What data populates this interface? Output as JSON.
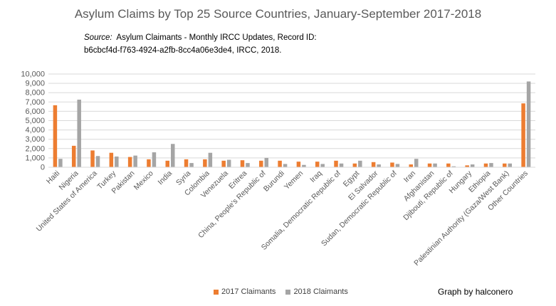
{
  "header": {
    "title": "Asylum Claims by Top 25 Source Countries, January-September 2017-2018",
    "source_label": "Source:",
    "source_text_1": "Asylum Claimants - Monthly IRCC Updates, Record ID:",
    "source_text_2": "b6cbcf4d-f763-4924-a2fb-8cc4a06e3de4, IRCC, 2018."
  },
  "footer": {
    "credit": "Graph by halconero"
  },
  "colors": {
    "series_2017": "#ed7d31",
    "series_2018": "#a5a5a5",
    "grid": "#d9d9d9",
    "text": "#595959"
  },
  "chart_data": {
    "type": "bar",
    "title": "Asylum Claims by Top 25 Source Countries, January-September 2017-2018",
    "xlabel": "",
    "ylabel": "",
    "ylim": [
      0,
      10000
    ],
    "yticks": [
      "0",
      "1,000",
      "2,000",
      "3,000",
      "4,000",
      "5,000",
      "6,000",
      "7,000",
      "8,000",
      "9,000",
      "10,000"
    ],
    "grid": true,
    "legend_position": "bottom",
    "categories": [
      "Haiti",
      "Nigeria",
      "United States of America",
      "Turkey",
      "Pakistan",
      "Mexico",
      "India",
      "Syria",
      "Colombia",
      "Venezuela",
      "Eritrea",
      "China, People's Republic of",
      "Burundi",
      "Yemen",
      "Iraq",
      "Somalia, Democratic Republic of",
      "Egypt",
      "El Salvador",
      "Sudan, Democratic Republic of",
      "Iran",
      "Afghanistan",
      "Djibouti, Republic of",
      "Hungary",
      "Ethiopia",
      "Palestinian Authority (Gaza/West Bank)",
      "Other Countries"
    ],
    "series": [
      {
        "name": "2017 Claimants",
        "color": "#ed7d31",
        "values": [
          6650,
          2300,
          1800,
          1550,
          1100,
          850,
          700,
          850,
          850,
          700,
          750,
          700,
          700,
          600,
          600,
          700,
          400,
          550,
          500,
          300,
          400,
          400,
          200,
          400,
          400,
          6850
        ]
      },
      {
        "name": "2018 Claimants",
        "color": "#a5a5a5",
        "values": [
          900,
          7250,
          1200,
          1150,
          1250,
          1600,
          2500,
          450,
          1550,
          800,
          450,
          1000,
          350,
          250,
          350,
          400,
          700,
          300,
          350,
          900,
          400,
          100,
          300,
          450,
          400,
          9200
        ]
      }
    ]
  }
}
